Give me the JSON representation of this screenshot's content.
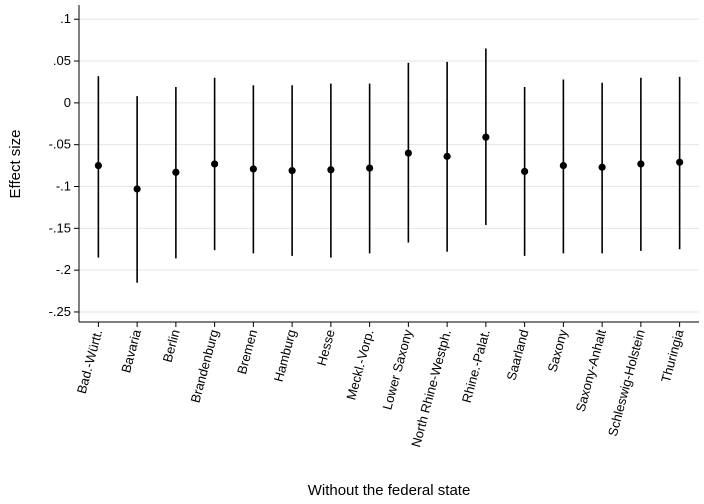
{
  "chart_data": {
    "type": "errorbar",
    "x_label": "Without the federal state",
    "y_label": "Effect size",
    "categories": [
      "Bad.-Württ.",
      "Bavaria",
      "Berlin",
      "Brandenburg",
      "Bremen",
      "Hamburg",
      "Hesse",
      "Meckl.-Vorp.",
      "Lower Saxony",
      "North Rhine-Westph.",
      "Rhine.-Palat.",
      "Saarland",
      "Saxony",
      "Saxony-Anhalt",
      "Schleswig-Holstein",
      "Thuringia"
    ],
    "values": [
      -0.075,
      -0.103,
      -0.083,
      -0.073,
      -0.079,
      -0.081,
      -0.08,
      -0.078,
      -0.06,
      -0.064,
      -0.041,
      -0.082,
      -0.075,
      -0.077,
      -0.073,
      -0.071
    ],
    "lower": [
      -0.185,
      -0.215,
      -0.186,
      -0.176,
      -0.18,
      -0.183,
      -0.185,
      -0.18,
      -0.167,
      -0.178,
      -0.146,
      -0.183,
      -0.18,
      -0.18,
      -0.177,
      -0.175
    ],
    "upper": [
      0.032,
      0.008,
      0.019,
      0.03,
      0.021,
      0.021,
      0.023,
      0.023,
      0.048,
      0.049,
      0.065,
      0.019,
      0.028,
      0.024,
      0.03,
      0.031
    ],
    "color": "#000000",
    "ylim": [
      -0.262,
      0.117
    ],
    "yticks": [
      {
        "value": -0.25,
        "label": "-.25"
      },
      {
        "value": -0.2,
        "label": "-.2"
      },
      {
        "value": -0.15,
        "label": "-.15"
      },
      {
        "value": -0.1,
        "label": "-.1"
      },
      {
        "value": -0.05,
        "label": "-.05"
      },
      0,
      {
        "value": 0.05,
        "label": ".05"
      },
      {
        "value": 0.1,
        "label": ".1"
      }
    ],
    "grid": true
  }
}
